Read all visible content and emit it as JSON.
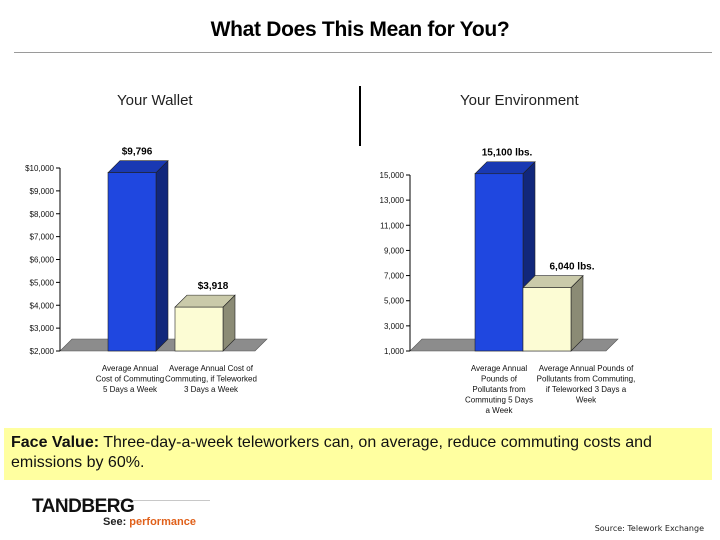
{
  "title": "What Does This Mean for You?",
  "charts": {
    "wallet": {
      "heading": "Your Wallet"
    },
    "environment": {
      "heading": "Your Environment"
    }
  },
  "chart_data": [
    {
      "type": "bar",
      "title": "Your Wallet",
      "categories": [
        "Average Annual Cost of Commuting 5 Days a Week",
        "Average Annual Cost of Commuting, if Teleworked 3 Days a Week"
      ],
      "category_lines": [
        [
          "Average Annual",
          "Cost of Commuting",
          "5 Days a Week"
        ],
        [
          "Average Annual Cost of",
          "Commuting, if Teleworked",
          "3 Days a Week"
        ]
      ],
      "values": [
        9796,
        3918
      ],
      "value_labels": [
        "$9,796",
        "$3,918"
      ],
      "ylim": [
        2000,
        10000
      ],
      "yticks": [
        2000,
        3000,
        4000,
        5000,
        6000,
        7000,
        8000,
        9000,
        10000
      ],
      "ytick_labels": [
        "$2,000",
        "$3,000",
        "$4,000",
        "$5,000",
        "$6,000",
        "$7,000",
        "$8,000",
        "$9,000",
        "$10,000"
      ],
      "colors": [
        "#1f47e0",
        "#fcfcd4"
      ],
      "grid": false,
      "style": "3d"
    },
    {
      "type": "bar",
      "title": "Your Environment",
      "categories": [
        "Average Annual Pounds of Pollutants from Commuting 5 Days a Week",
        "Average Annual Pounds of Pollutants from Commuting, if Teleworked 3 Days a Week"
      ],
      "category_lines": [
        [
          "Average Annual",
          "Pounds of",
          "Pollutants from",
          "Commuting 5 Days",
          "a Week"
        ],
        [
          "Average Annual Pounds of",
          "Pollutants from Commuting,",
          "if Teleworked 3 Days a",
          "Week"
        ]
      ],
      "values": [
        15100,
        6040
      ],
      "value_labels": [
        "15,100 lbs.",
        "6,040 lbs."
      ],
      "ylim": [
        1000,
        15000
      ],
      "yticks": [
        1000,
        3000,
        5000,
        7000,
        9000,
        11000,
        13000,
        15000
      ],
      "ytick_labels": [
        "1,000",
        "3,000",
        "5,000",
        "7,000",
        "9,000",
        "11,000",
        "13,000",
        "15,000"
      ],
      "colors": [
        "#1f47e0",
        "#fcfcd4"
      ],
      "grid": false,
      "style": "3d"
    }
  ],
  "callout": {
    "label": "Face Value:",
    "text": " Three-day-a-week teleworkers can, on average, reduce commuting costs and emissions by 60%.",
    "background": "#ffffa0"
  },
  "footer": {
    "logo": "TANDBERG",
    "tagline_see": "See:",
    "tagline_performance": " performance",
    "tagline_color": "#e0601a",
    "source": "Source: Telework Exchange"
  }
}
